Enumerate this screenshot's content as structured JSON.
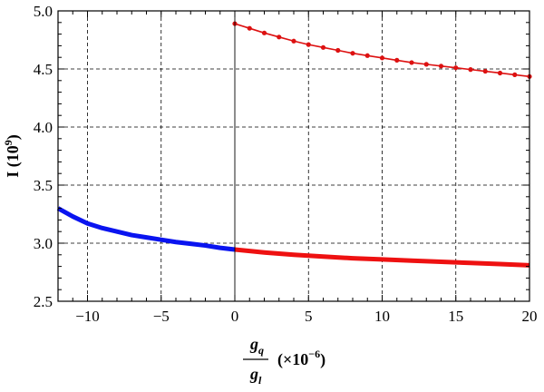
{
  "chart_data": {
    "type": "line",
    "xlabel": {
      "numerator": "g",
      "numerator_sub": "q",
      "denominator": "g",
      "denominator_sub": "l",
      "unit_prefix": "(×10",
      "unit_exponent": "−6",
      "unit_suffix": ")"
    },
    "ylabel": {
      "text": "I (10",
      "exponent": "9",
      "suffix": ")"
    },
    "xlim": [
      -12,
      20
    ],
    "ylim": [
      2.5,
      5.0
    ],
    "xticks": [
      -10,
      -5,
      0,
      5,
      10,
      15,
      20
    ],
    "xtick_labels": [
      "−10",
      "−5",
      "0",
      "5",
      "10",
      "15",
      "20"
    ],
    "yticks": [
      2.5,
      3.0,
      3.5,
      4.0,
      4.5,
      5.0
    ],
    "ytick_labels": [
      "2.5",
      "3.0",
      "3.5",
      "4.0",
      "4.5",
      "5.0"
    ],
    "grid": true,
    "series": [
      {
        "color": "#0a14f0",
        "style": "thick-line",
        "x": [
          -12,
          -11,
          -10,
          -9,
          -8,
          -7,
          -6,
          -5,
          -4,
          -3,
          -2,
          -1,
          0
        ],
        "y": [
          3.3,
          3.23,
          3.17,
          3.13,
          3.1,
          3.07,
          3.05,
          3.03,
          3.01,
          2.995,
          2.98,
          2.96,
          2.945
        ]
      },
      {
        "color": "#ee1111",
        "style": "thick-line",
        "x": [
          0,
          2,
          4,
          6,
          8,
          10,
          12,
          14,
          16,
          18,
          20
        ],
        "y": [
          2.945,
          2.92,
          2.9,
          2.885,
          2.87,
          2.86,
          2.85,
          2.84,
          2.83,
          2.82,
          2.81
        ]
      },
      {
        "color": "#dd1111",
        "style": "line-with-markers",
        "x": [
          0,
          1,
          2,
          3,
          4,
          5,
          6,
          7,
          8,
          9,
          10,
          11,
          12,
          13,
          14,
          15,
          16,
          17,
          18,
          19,
          20
        ],
        "y": [
          4.89,
          4.85,
          4.81,
          4.775,
          4.74,
          4.71,
          4.685,
          4.66,
          4.635,
          4.615,
          4.595,
          4.575,
          4.555,
          4.54,
          4.525,
          4.51,
          4.495,
          4.48,
          4.465,
          4.45,
          4.435
        ]
      }
    ]
  }
}
